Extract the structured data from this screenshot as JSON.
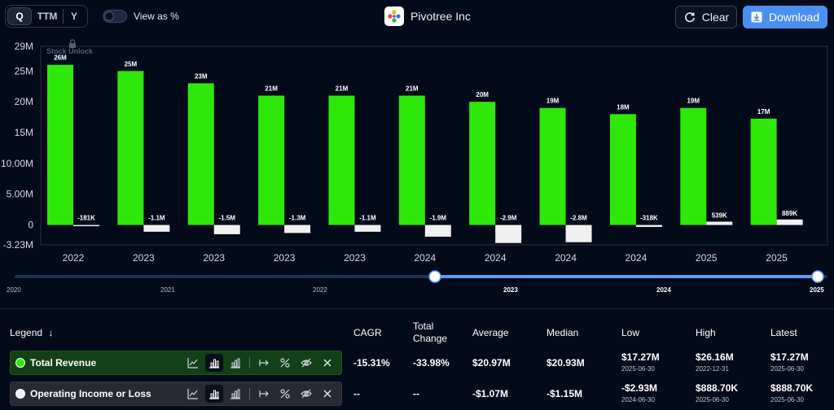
{
  "header": {
    "periods": [
      "Q",
      "TTM",
      "Y"
    ],
    "active_period": "Q",
    "view_as_pct_label": "View as %",
    "company_name": "Pivotree Inc",
    "clear_label": "Clear",
    "download_label": "Download"
  },
  "watermark": "Stock Unlock",
  "chart_data": {
    "type": "bar",
    "y_ticks": [
      "29M",
      "25M",
      "20M",
      "15M",
      "10.00M",
      "5.00M",
      "0",
      "-3.23M"
    ],
    "y_tick_values": [
      29,
      25,
      20,
      15,
      10,
      5,
      0,
      -3.23
    ],
    "ylim": [
      -3.23,
      29
    ],
    "categories": [
      "2022",
      "2023",
      "2023",
      "2023",
      "2023",
      "2024",
      "2024",
      "2024",
      "2024",
      "2025",
      "2025"
    ],
    "series": [
      {
        "name": "Total Revenue",
        "color": "#2ee80a",
        "values": [
          26,
          25,
          23,
          21,
          21,
          21,
          20,
          19,
          18,
          19,
          17.27
        ],
        "labels": [
          "26M",
          "25M",
          "23M",
          "21M",
          "21M",
          "21M",
          "20M",
          "19M",
          "18M",
          "19M",
          "17M"
        ]
      },
      {
        "name": "Operating Income or Loss",
        "color": "#f0f0f0",
        "values": [
          -0.181,
          -1.1,
          -1.5,
          -1.3,
          -1.1,
          -1.9,
          -2.93,
          -2.8,
          -0.318,
          0.539,
          0.8887
        ],
        "labels": [
          "-181K",
          "-1.1M",
          "-1.5M",
          "-1.3M",
          "-1.1M",
          "-1.9M",
          "-2.9M",
          "-2.8M",
          "-318K",
          "539K",
          "889K"
        ]
      }
    ]
  },
  "range": {
    "labels": [
      "2020",
      "2021",
      "2022",
      "2023",
      "2024",
      "2025"
    ],
    "highlighted": [
      "2023",
      "2024",
      "2025"
    ]
  },
  "legend": {
    "title": "Legend",
    "columns": {
      "cagr": "CAGR",
      "total_change_1": "Total",
      "total_change_2": "Change",
      "average": "Average",
      "median": "Median",
      "low": "Low",
      "high": "High",
      "latest": "Latest"
    },
    "rows": [
      {
        "name": "Total Revenue",
        "color": "#2ee80a",
        "cagr": "-15.31%",
        "total_change": "-33.98%",
        "average": "$20.97M",
        "median": "$20.93M",
        "low": "$17.27M",
        "low_date": "2025-06-30",
        "high": "$26.16M",
        "high_date": "2022-12-31",
        "latest": "$17.27M",
        "latest_date": "2025-06-30"
      },
      {
        "name": "Operating Income or Loss",
        "color": "#f0f0f0",
        "cagr": "--",
        "total_change": "--",
        "average": "-$1.07M",
        "median": "-$1.15M",
        "low": "-$2.93M",
        "low_date": "2024-06-30",
        "high": "$888.70K",
        "high_date": "2025-06-30",
        "latest": "$888.70K",
        "latest_date": "2025-06-30"
      }
    ]
  }
}
